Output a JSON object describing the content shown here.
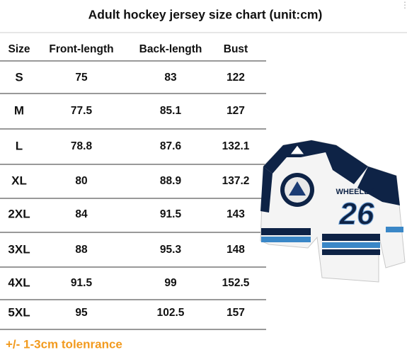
{
  "header": {
    "title": "Adult hockey jersey size chart (unit:cm)"
  },
  "table": {
    "columns": [
      "Size",
      "Front-length",
      "Back-length",
      "Bust"
    ],
    "rows": [
      [
        "S",
        "75",
        "83",
        "122"
      ],
      [
        "M",
        "77.5",
        "85.1",
        "127"
      ],
      [
        "L",
        "78.8",
        "87.6",
        "132.1"
      ],
      [
        "XL",
        "80",
        "88.9",
        "137.2"
      ],
      [
        "2XL",
        "84",
        "91.5",
        "143"
      ],
      [
        "3XL",
        "88",
        "95.3",
        "148"
      ],
      [
        "4XL",
        "91.5",
        "99",
        "152.5"
      ],
      [
        "5XL",
        "95",
        "102.5",
        "157"
      ]
    ]
  },
  "note": "+/- 1-3cm tolenrance",
  "jersey": {
    "name": "WHEELER",
    "number": "26"
  }
}
